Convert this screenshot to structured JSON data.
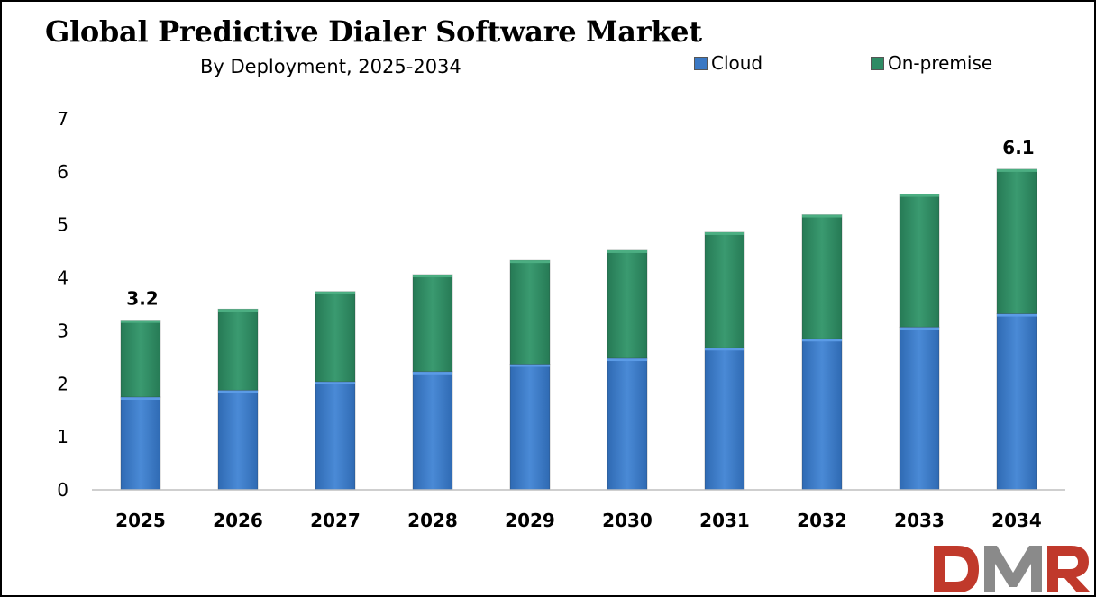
{
  "chart_data": {
    "type": "bar",
    "stacked": true,
    "title": "Global Predictive Dialer Software Market",
    "subtitle": "By Deployment, 2025-2034",
    "categories": [
      "2025",
      "2026",
      "2027",
      "2028",
      "2029",
      "2030",
      "2031",
      "2032",
      "2033",
      "2034"
    ],
    "series": [
      {
        "name": "Cloud",
        "color": "#3a78c4",
        "values": [
          1.75,
          1.88,
          2.04,
          2.23,
          2.37,
          2.48,
          2.68,
          2.85,
          3.07,
          3.32
        ]
      },
      {
        "name": "On-premise",
        "color": "#2e8b64",
        "values": [
          1.45,
          1.53,
          1.7,
          1.83,
          1.96,
          2.04,
          2.18,
          2.34,
          2.51,
          2.73
        ]
      }
    ],
    "data_labels": [
      {
        "category": "2025",
        "text": "3.2"
      },
      {
        "category": "2034",
        "text": "6.1"
      }
    ],
    "yticks": [
      "0",
      "1",
      "2",
      "3",
      "4",
      "5",
      "6",
      "7"
    ],
    "ylim": [
      0,
      7
    ],
    "grid": false,
    "legend": "top-right"
  },
  "logo": {
    "text": "DMR",
    "colors": {
      "d": "#c0392b",
      "m": "#8a8a8a",
      "r": "#c0392b"
    }
  }
}
